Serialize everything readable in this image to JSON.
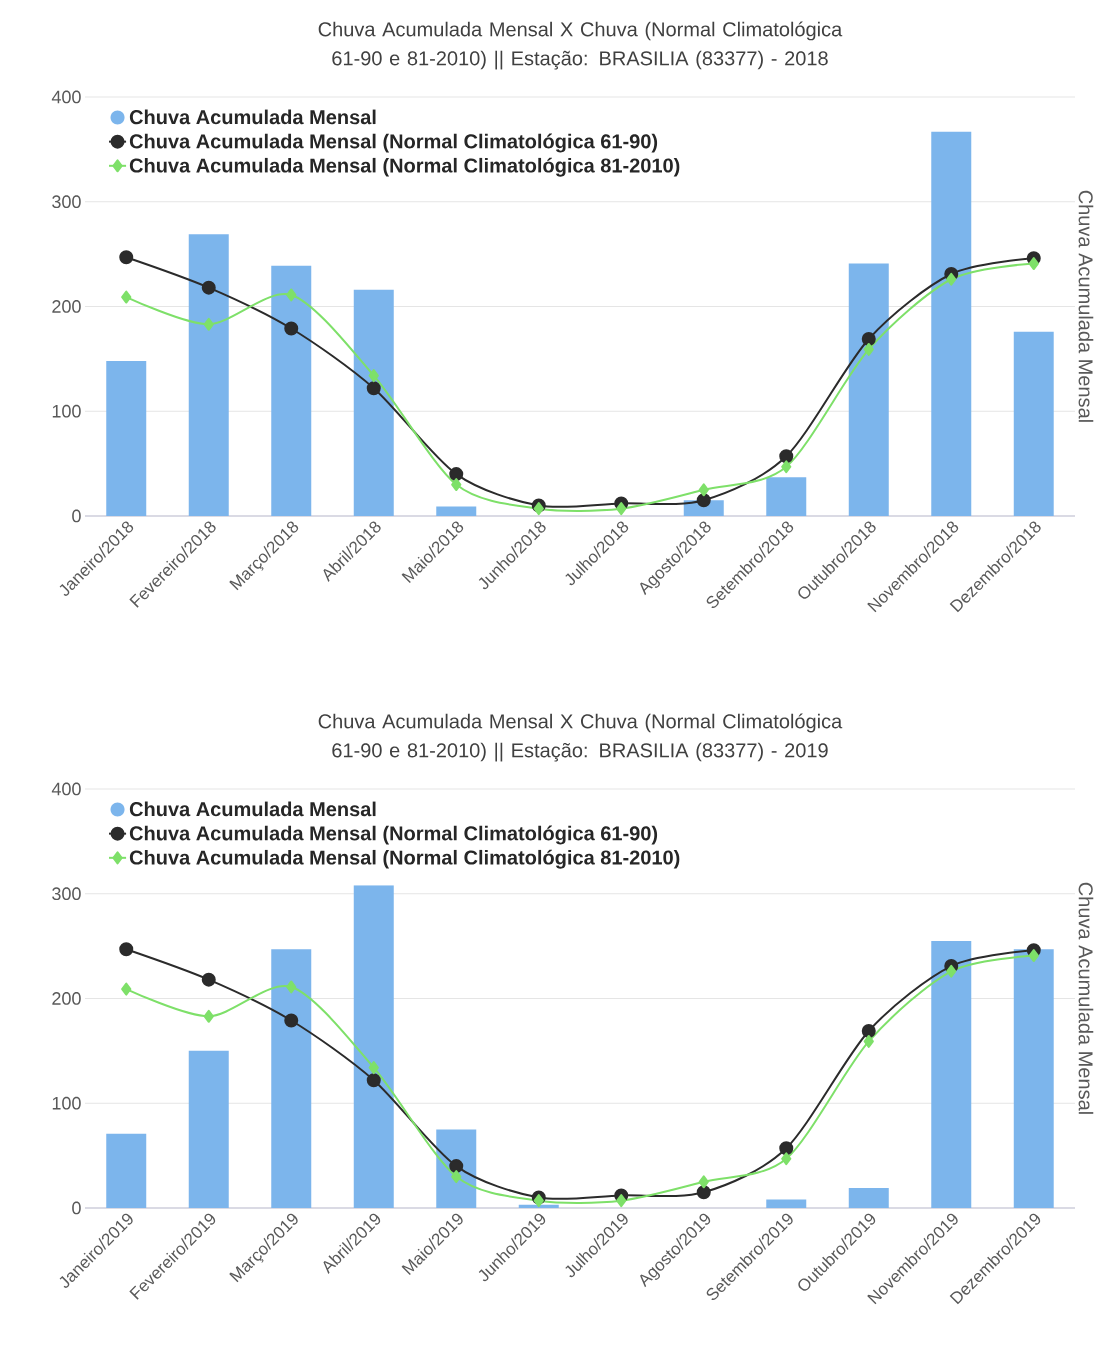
{
  "chart_data": [
    {
      "type": "bar",
      "title": "Chuva Acumulada Mensal X Chuva (Normal Climatológica 61-90 e 81-2010) || Estação: BRASILIA (83377) - 2018",
      "ylabel": "Chuva Acumulada Mensal",
      "categories": [
        "Janeiro/2018",
        "Fevereiro/2018",
        "Março/2018",
        "Abril/2018",
        "Maio/2018",
        "Junho/2018",
        "Julho/2018",
        "Agosto/2018",
        "Setembro/2018",
        "Outubro/2018",
        "Novembro/2018",
        "Dezembro/2018"
      ],
      "series": [
        {
          "name": "Chuva Acumulada Mensal",
          "color": "#7cb5ec",
          "values": [
            148,
            269,
            239,
            216,
            9,
            0,
            0,
            15,
            37,
            241,
            367,
            176
          ]
        },
        {
          "name": "Chuva Acumulada Mensal (Normal Climatológica 61-90)",
          "type": "line",
          "marker": "circle",
          "color": "#2b2b2b",
          "values": [
            247,
            218,
            179,
            122,
            40,
            10,
            12,
            15,
            57,
            169,
            231,
            246
          ]
        },
        {
          "name": "Chuva Acumulada Mensal (Normal Climatológica 81-2010)",
          "type": "line",
          "marker": "diamond",
          "color": "#7ee069",
          "values": [
            209,
            183,
            211,
            134,
            30,
            7,
            7,
            25,
            47,
            159,
            226,
            241
          ]
        }
      ],
      "ylim": [
        0,
        400
      ],
      "yticks": [
        0,
        100,
        200,
        300,
        400
      ],
      "grid": "y",
      "legend": "top left"
    },
    {
      "type": "bar",
      "title": "Chuva Acumulada Mensal X Chuva (Normal Climatológica 61-90 e 81-2010) || Estação: BRASILIA (83377) - 2019",
      "ylabel": "Chuva Acumulada Mensal",
      "categories": [
        "Janeiro/2019",
        "Fevereiro/2019",
        "Março/2019",
        "Abril/2019",
        "Maio/2019",
        "Junho/2019",
        "Julho/2019",
        "Agosto/2019",
        "Setembro/2019",
        "Outubro/2019",
        "Novembro/2019",
        "Dezembro/2019"
      ],
      "series": [
        {
          "name": "Chuva Acumulada Mensal",
          "color": "#7cb5ec",
          "values": [
            71,
            150,
            247,
            308,
            75,
            3,
            0,
            0,
            8,
            19,
            255,
            247
          ]
        },
        {
          "name": "Chuva Acumulada Mensal (Normal Climatológica 61-90)",
          "type": "line",
          "marker": "circle",
          "color": "#2b2b2b",
          "values": [
            247,
            218,
            179,
            122,
            40,
            10,
            12,
            15,
            57,
            169,
            231,
            246
          ]
        },
        {
          "name": "Chuva Acumulada Mensal (Normal Climatológica 81-2010)",
          "type": "line",
          "marker": "diamond",
          "color": "#7ee069",
          "values": [
            209,
            183,
            211,
            134,
            30,
            7,
            7,
            25,
            47,
            159,
            226,
            241
          ]
        }
      ],
      "ylim": [
        0,
        400
      ],
      "yticks": [
        0,
        100,
        200,
        300,
        400
      ],
      "grid": "y",
      "legend": "top left"
    }
  ]
}
